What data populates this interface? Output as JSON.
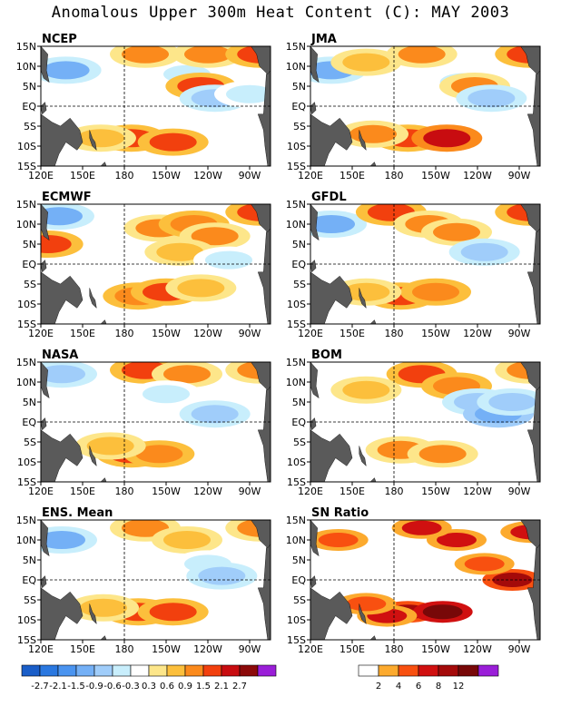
{
  "title": "Anomalous Upper 300m Heat Content (C): MAY 2003",
  "colors": {
    "land": "#5a5a5a",
    "anomaly_scale": [
      "#1a5ec8",
      "#2a78e0",
      "#4a94f0",
      "#74b0f6",
      "#a0cdfa",
      "#c8eefc",
      "#ffffff",
      "#fde68a",
      "#fcbf3c",
      "#fb8a1c",
      "#f2400e",
      "#c80c10",
      "#8c0a0a",
      "#9a1ed8"
    ],
    "snr_scale": [
      "#ffffff",
      "#fcaa2e",
      "#f85010",
      "#d01010",
      "#a40a0a",
      "#780808",
      "#9a1ed8"
    ]
  },
  "chart_data": [
    {
      "type": "heatmap",
      "title": "NCEP",
      "variable": "heat content anomaly",
      "xticks": [
        "120E",
        "150E",
        "180",
        "150W",
        "120W",
        "90W"
      ],
      "yticks": [
        "15N",
        "10N",
        "5N",
        "EQ",
        "5S",
        "10S",
        "15S"
      ],
      "features": [
        {
          "lon": 138,
          "lat": 9,
          "value": -1.2
        },
        {
          "lon": 225,
          "lat": 8,
          "value": -0.6
        },
        {
          "lon": 235,
          "lat": 5,
          "value": 1.5
        },
        {
          "lon": 245,
          "lat": 2,
          "value": -0.9
        },
        {
          "lon": 195,
          "lat": 13,
          "value": 1.0
        },
        {
          "lon": 240,
          "lat": 13,
          "value": 0.9
        },
        {
          "lon": 185,
          "lat": -8,
          "value": 1.5
        },
        {
          "lon": 215,
          "lat": -9,
          "value": 1.5
        },
        {
          "lon": 163,
          "lat": -8,
          "value": 0.6
        },
        {
          "lon": 270,
          "lat": 3,
          "value": -0.6
        },
        {
          "lon": 278,
          "lat": 13,
          "value": 1.5
        }
      ]
    },
    {
      "type": "heatmap",
      "title": "JMA",
      "variable": "heat content anomaly",
      "xticks": [
        "120E",
        "150E",
        "180",
        "150W",
        "120W",
        "90W"
      ],
      "yticks": [
        "15N",
        "10N",
        "5N",
        "EQ",
        "5S",
        "10S",
        "15S"
      ],
      "features": [
        {
          "lon": 135,
          "lat": 9,
          "value": -1.2
        },
        {
          "lon": 230,
          "lat": 6,
          "value": -0.6
        },
        {
          "lon": 238,
          "lat": 5,
          "value": 0.9
        },
        {
          "lon": 250,
          "lat": 2,
          "value": -0.9
        },
        {
          "lon": 160,
          "lat": 11,
          "value": 0.6
        },
        {
          "lon": 200,
          "lat": 13,
          "value": 0.9
        },
        {
          "lon": 190,
          "lat": -8,
          "value": 1.5
        },
        {
          "lon": 218,
          "lat": -8,
          "value": 2.1
        },
        {
          "lon": 165,
          "lat": -7,
          "value": 0.9
        },
        {
          "lon": 278,
          "lat": 13,
          "value": 1.5
        }
      ]
    },
    {
      "type": "heatmap",
      "title": "ECMWF",
      "variable": "heat content anomaly",
      "xticks": [
        "120E",
        "150E",
        "180",
        "150W",
        "120W",
        "90W"
      ],
      "yticks": [
        "15N",
        "10N",
        "5N",
        "EQ",
        "5S",
        "10S",
        "15S"
      ],
      "features": [
        {
          "lon": 133,
          "lat": 12,
          "value": -1.2
        },
        {
          "lon": 125,
          "lat": 5,
          "value": 1.5
        },
        {
          "lon": 205,
          "lat": 9,
          "value": 0.9
        },
        {
          "lon": 230,
          "lat": 10,
          "value": 1.2
        },
        {
          "lon": 245,
          "lat": 7,
          "value": 0.9
        },
        {
          "lon": 220,
          "lat": 3,
          "value": 0.6
        },
        {
          "lon": 190,
          "lat": -8,
          "value": 1.2
        },
        {
          "lon": 210,
          "lat": -7,
          "value": 1.5
        },
        {
          "lon": 235,
          "lat": -6,
          "value": 0.6
        },
        {
          "lon": 255,
          "lat": 1,
          "value": -0.6
        },
        {
          "lon": 278,
          "lat": 13,
          "value": 1.5
        }
      ]
    },
    {
      "type": "heatmap",
      "title": "GFDL",
      "variable": "heat content anomaly",
      "xticks": [
        "120E",
        "150E",
        "180",
        "150W",
        "120W",
        "90W"
      ],
      "yticks": [
        "15N",
        "10N",
        "5N",
        "EQ",
        "5S",
        "10S",
        "15S"
      ],
      "features": [
        {
          "lon": 135,
          "lat": 10,
          "value": -1.2
        },
        {
          "lon": 178,
          "lat": 13,
          "value": 1.5
        },
        {
          "lon": 205,
          "lat": 10,
          "value": 0.9
        },
        {
          "lon": 225,
          "lat": 8,
          "value": 0.9
        },
        {
          "lon": 245,
          "lat": 3,
          "value": -0.9
        },
        {
          "lon": 185,
          "lat": -8,
          "value": 1.5
        },
        {
          "lon": 210,
          "lat": -7,
          "value": 1.2
        },
        {
          "lon": 160,
          "lat": -7,
          "value": 0.6
        },
        {
          "lon": 278,
          "lat": 13,
          "value": 1.5
        }
      ]
    },
    {
      "type": "heatmap",
      "title": "NASA",
      "variable": "heat content anomaly",
      "xticks": [
        "120E",
        "150E",
        "180",
        "150W",
        "120W",
        "90W"
      ],
      "yticks": [
        "15N",
        "10N",
        "5N",
        "EQ",
        "5S",
        "10S",
        "15S"
      ],
      "features": [
        {
          "lon": 135,
          "lat": 12,
          "value": -0.9
        },
        {
          "lon": 195,
          "lat": 13,
          "value": 1.5
        },
        {
          "lon": 225,
          "lat": 12,
          "value": 0.9
        },
        {
          "lon": 210,
          "lat": 7,
          "value": -0.6
        },
        {
          "lon": 245,
          "lat": 2,
          "value": -0.9
        },
        {
          "lon": 185,
          "lat": -8,
          "value": 1.5
        },
        {
          "lon": 205,
          "lat": -8,
          "value": 1.2
        },
        {
          "lon": 170,
          "lat": -6,
          "value": 0.6
        },
        {
          "lon": 278,
          "lat": 13,
          "value": 0.9
        }
      ]
    },
    {
      "type": "heatmap",
      "title": "BOM",
      "variable": "heat content anomaly",
      "xticks": [
        "120E",
        "150E",
        "180",
        "150W",
        "120W",
        "90W"
      ],
      "yticks": [
        "15N",
        "10N",
        "5N",
        "EQ",
        "5S",
        "10S",
        "15S"
      ],
      "features": [
        {
          "lon": 200,
          "lat": 12,
          "value": 1.5
        },
        {
          "lon": 225,
          "lat": 9,
          "value": 1.2
        },
        {
          "lon": 240,
          "lat": 5,
          "value": -0.9
        },
        {
          "lon": 255,
          "lat": 2,
          "value": -1.5
        },
        {
          "lon": 265,
          "lat": 5,
          "value": -0.9
        },
        {
          "lon": 185,
          "lat": -7,
          "value": 0.9
        },
        {
          "lon": 215,
          "lat": -8,
          "value": 0.9
        },
        {
          "lon": 160,
          "lat": 8,
          "value": 0.6
        },
        {
          "lon": 278,
          "lat": 13,
          "value": 0.9
        }
      ]
    },
    {
      "type": "heatmap",
      "title": "ENS. Mean",
      "variable": "heat content anomaly",
      "xticks": [
        "120E",
        "150E",
        "180",
        "150W",
        "120W",
        "90W"
      ],
      "yticks": [
        "15N",
        "10N",
        "5N",
        "EQ",
        "5S",
        "10S",
        "15S"
      ],
      "features": [
        {
          "lon": 135,
          "lat": 10,
          "value": -1.2
        },
        {
          "lon": 195,
          "lat": 13,
          "value": 0.9
        },
        {
          "lon": 225,
          "lat": 10,
          "value": 0.6
        },
        {
          "lon": 240,
          "lat": 4,
          "value": -0.6
        },
        {
          "lon": 250,
          "lat": 1,
          "value": -0.9
        },
        {
          "lon": 190,
          "lat": -8,
          "value": 1.5
        },
        {
          "lon": 215,
          "lat": -8,
          "value": 1.5
        },
        {
          "lon": 165,
          "lat": -7,
          "value": 0.6
        },
        {
          "lon": 278,
          "lat": 13,
          "value": 0.9
        }
      ]
    },
    {
      "type": "heatmap",
      "title": "SN Ratio",
      "variable": "signal to noise ratio",
      "xticks": [
        "120E",
        "150E",
        "180",
        "150W",
        "120W",
        "90W"
      ],
      "yticks": [
        "15N",
        "10N",
        "5N",
        "EQ",
        "5S",
        "10S",
        "15S"
      ],
      "features": [
        {
          "lon": 190,
          "lat": -8,
          "value": 8
        },
        {
          "lon": 215,
          "lat": -8,
          "value": 12
        },
        {
          "lon": 175,
          "lat": -9,
          "value": 6
        },
        {
          "lon": 265,
          "lat": 0,
          "value": 8
        },
        {
          "lon": 225,
          "lat": 10,
          "value": 6
        },
        {
          "lon": 140,
          "lat": 10,
          "value": 4
        },
        {
          "lon": 200,
          "lat": 13,
          "value": 6
        },
        {
          "lon": 245,
          "lat": 4,
          "value": 4
        },
        {
          "lon": 160,
          "lat": -6,
          "value": 4
        },
        {
          "lon": 278,
          "lat": 12,
          "value": 6
        }
      ]
    }
  ],
  "legends": {
    "anomaly": {
      "labels": [
        "-2.7",
        "-2.1",
        "-1.5",
        "-0.9",
        "-0.6",
        "-0.3",
        "0.3",
        "0.6",
        "0.9",
        "1.5",
        "2.1",
        "2.7"
      ]
    },
    "snr": {
      "labels": [
        "2",
        "4",
        "6",
        "8",
        "12"
      ]
    }
  }
}
